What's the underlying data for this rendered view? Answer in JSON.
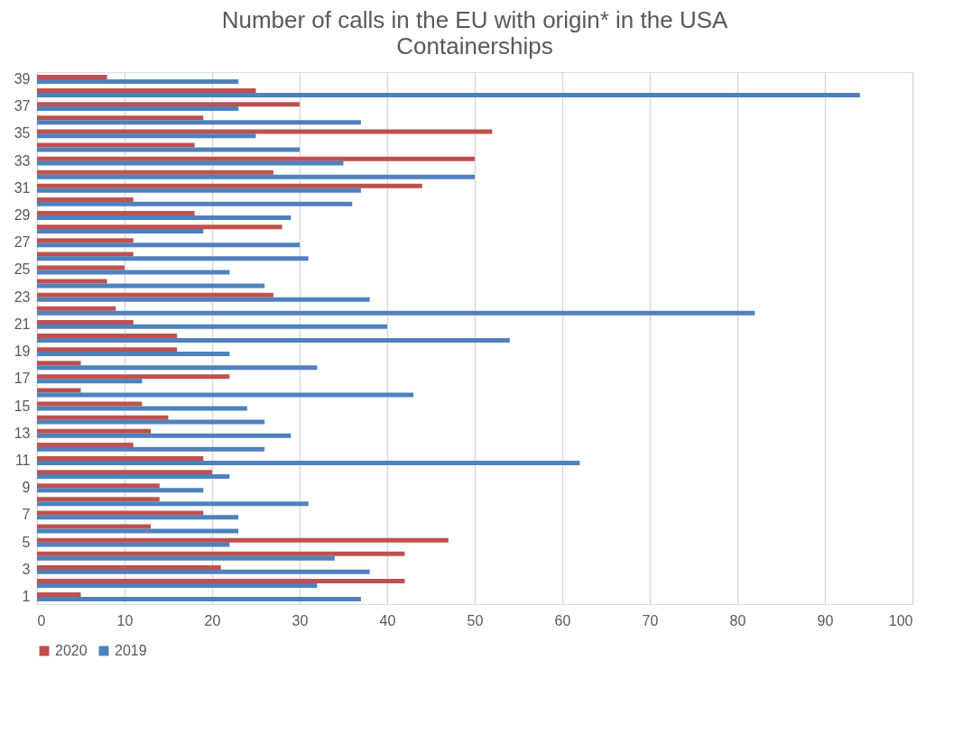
{
  "chart_data": {
    "type": "bar",
    "orientation": "horizontal",
    "title": "Number of calls in the EU with origin* in the USA",
    "subtitle": "Containerships",
    "categories": [
      "39",
      null,
      "37",
      null,
      "35",
      null,
      "33",
      null,
      "31",
      null,
      "29",
      null,
      "27",
      null,
      "25",
      null,
      "23",
      null,
      "21",
      null,
      "19",
      null,
      "17",
      null,
      "15",
      null,
      "13",
      null,
      "11",
      null,
      "9",
      null,
      "7",
      null,
      "5",
      null,
      "3",
      null,
      "1"
    ],
    "series": [
      {
        "name": "2020",
        "color": "#c0504d",
        "values": [
          8,
          25,
          30,
          19,
          52,
          18,
          50,
          27,
          44,
          11,
          18,
          28,
          11,
          11,
          10,
          8,
          27,
          9,
          11,
          16,
          16,
          5,
          22,
          5,
          12,
          15,
          13,
          11,
          19,
          20,
          14,
          14,
          19,
          13,
          47,
          42,
          21,
          42,
          5
        ]
      },
      {
        "name": "2019",
        "color": "#4f81bd",
        "values": [
          23,
          94,
          23,
          37,
          25,
          30,
          35,
          50,
          37,
          36,
          29,
          19,
          30,
          31,
          22,
          26,
          38,
          82,
          40,
          54,
          22,
          32,
          12,
          43,
          24,
          26,
          29,
          26,
          62,
          22,
          19,
          31,
          23,
          23,
          22,
          34,
          38,
          32,
          37
        ]
      }
    ],
    "xlim": [
      0,
      100
    ],
    "xticks": [
      0,
      10,
      20,
      30,
      40,
      50,
      60,
      70,
      80,
      90,
      100
    ],
    "grid": "x",
    "legend": "bottom"
  }
}
